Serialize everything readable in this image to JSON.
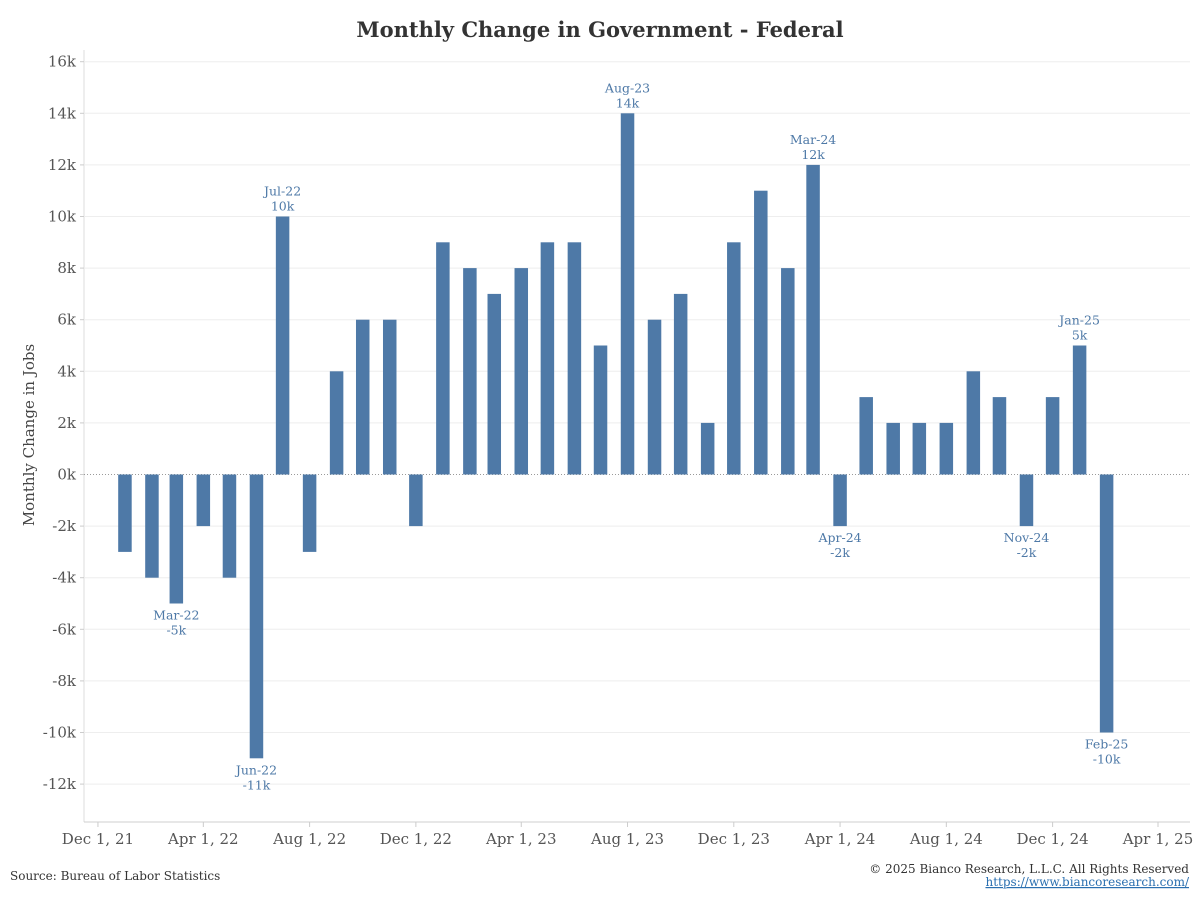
{
  "chart_data": {
    "type": "bar",
    "title": "Monthly Change in Government - Federal",
    "xlabel": "",
    "ylabel": "Monthly Change in Jobs",
    "ylim": [
      -13500,
      16000
    ],
    "y_ticks": [
      16000,
      14000,
      12000,
      10000,
      8000,
      6000,
      4000,
      2000,
      0,
      -2000,
      -4000,
      -6000,
      -8000,
      -10000,
      -12000
    ],
    "y_tick_labels": [
      "16k",
      "14k",
      "12k",
      "10k",
      "8k",
      "6k",
      "4k",
      "2k",
      "0k",
      "-2k",
      "-4k",
      "-6k",
      "-8k",
      "-10k",
      "-12k"
    ],
    "x_axis": {
      "start": "2021-11-15",
      "end": "2025-04-01",
      "ticks": [
        {
          "date": "2021-12-01",
          "label": "Dec 1, 21"
        },
        {
          "date": "2022-04-01",
          "label": "Apr 1, 22"
        },
        {
          "date": "2022-08-01",
          "label": "Aug 1, 22"
        },
        {
          "date": "2022-12-01",
          "label": "Dec 1, 22"
        },
        {
          "date": "2023-04-01",
          "label": "Apr 1, 23"
        },
        {
          "date": "2023-08-01",
          "label": "Aug 1, 23"
        },
        {
          "date": "2023-12-01",
          "label": "Dec 1, 23"
        },
        {
          "date": "2024-04-01",
          "label": "Apr 1, 24"
        },
        {
          "date": "2024-08-01",
          "label": "Aug 1, 24"
        },
        {
          "date": "2024-12-01",
          "label": "Dec 1, 24"
        },
        {
          "date": "2025-04-01",
          "label": "Apr 1, 25"
        }
      ]
    },
    "bar_color": "#4e79a7",
    "label_color": "#4e79a7",
    "gridlines": true,
    "bars": [
      {
        "date": "2022-01-01",
        "value": -3000
      },
      {
        "date": "2022-02-01",
        "value": -4000
      },
      {
        "date": "2022-03-01",
        "value": -5000
      },
      {
        "date": "2022-04-01",
        "value": -2000
      },
      {
        "date": "2022-05-01",
        "value": -4000
      },
      {
        "date": "2022-06-01",
        "value": -11000
      },
      {
        "date": "2022-07-01",
        "value": 10000
      },
      {
        "date": "2022-08-01",
        "value": -3000
      },
      {
        "date": "2022-09-01",
        "value": 4000
      },
      {
        "date": "2022-10-01",
        "value": 6000
      },
      {
        "date": "2022-11-01",
        "value": 6000
      },
      {
        "date": "2022-12-01",
        "value": -2000
      },
      {
        "date": "2023-01-01",
        "value": 9000
      },
      {
        "date": "2023-02-01",
        "value": 8000
      },
      {
        "date": "2023-03-01",
        "value": 7000
      },
      {
        "date": "2023-04-01",
        "value": 8000
      },
      {
        "date": "2023-05-01",
        "value": 9000
      },
      {
        "date": "2023-06-01",
        "value": 9000
      },
      {
        "date": "2023-07-01",
        "value": 5000
      },
      {
        "date": "2023-08-01",
        "value": 14000
      },
      {
        "date": "2023-09-01",
        "value": 6000
      },
      {
        "date": "2023-10-01",
        "value": 7000
      },
      {
        "date": "2023-11-01",
        "value": 2000
      },
      {
        "date": "2023-12-01",
        "value": 9000
      },
      {
        "date": "2024-01-01",
        "value": 11000
      },
      {
        "date": "2024-02-01",
        "value": 8000
      },
      {
        "date": "2024-03-01",
        "value": 12000
      },
      {
        "date": "2024-04-01",
        "value": -2000
      },
      {
        "date": "2024-05-01",
        "value": 3000
      },
      {
        "date": "2024-06-01",
        "value": 2000
      },
      {
        "date": "2024-07-01",
        "value": 2000
      },
      {
        "date": "2024-08-01",
        "value": 2000
      },
      {
        "date": "2024-09-01",
        "value": 4000
      },
      {
        "date": "2024-10-01",
        "value": 3000
      },
      {
        "date": "2024-11-01",
        "value": -2000
      },
      {
        "date": "2024-12-01",
        "value": 3000
      },
      {
        "date": "2025-01-01",
        "value": 5000
      },
      {
        "date": "2025-02-01",
        "value": -10000
      }
    ],
    "annotations": [
      {
        "date": "2022-03-01",
        "value": -5000,
        "month": "Mar-22",
        "text": "-5k"
      },
      {
        "date": "2022-06-01",
        "value": -11000,
        "month": "Jun-22",
        "text": "-11k"
      },
      {
        "date": "2022-07-01",
        "value": 10000,
        "month": "Jul-22",
        "text": "10k"
      },
      {
        "date": "2023-08-01",
        "value": 14000,
        "month": "Aug-23",
        "text": "14k"
      },
      {
        "date": "2024-03-01",
        "value": 12000,
        "month": "Mar-24",
        "text": "12k"
      },
      {
        "date": "2024-04-01",
        "value": -2000,
        "month": "Apr-24",
        "text": "-2k"
      },
      {
        "date": "2024-11-01",
        "value": -2000,
        "month": "Nov-24",
        "text": "-2k"
      },
      {
        "date": "2025-01-01",
        "value": 5000,
        "month": "Jan-25",
        "text": "5k"
      },
      {
        "date": "2025-02-01",
        "value": -10000,
        "month": "Feb-25",
        "text": "-10k"
      }
    ]
  },
  "footer": {
    "source": "Source: Bureau of Labor Statistics",
    "copyright": "© 2025 Bianco Research, L.L.C. All Rights Reserved",
    "url": "https://www.biancoresearch.com/"
  }
}
